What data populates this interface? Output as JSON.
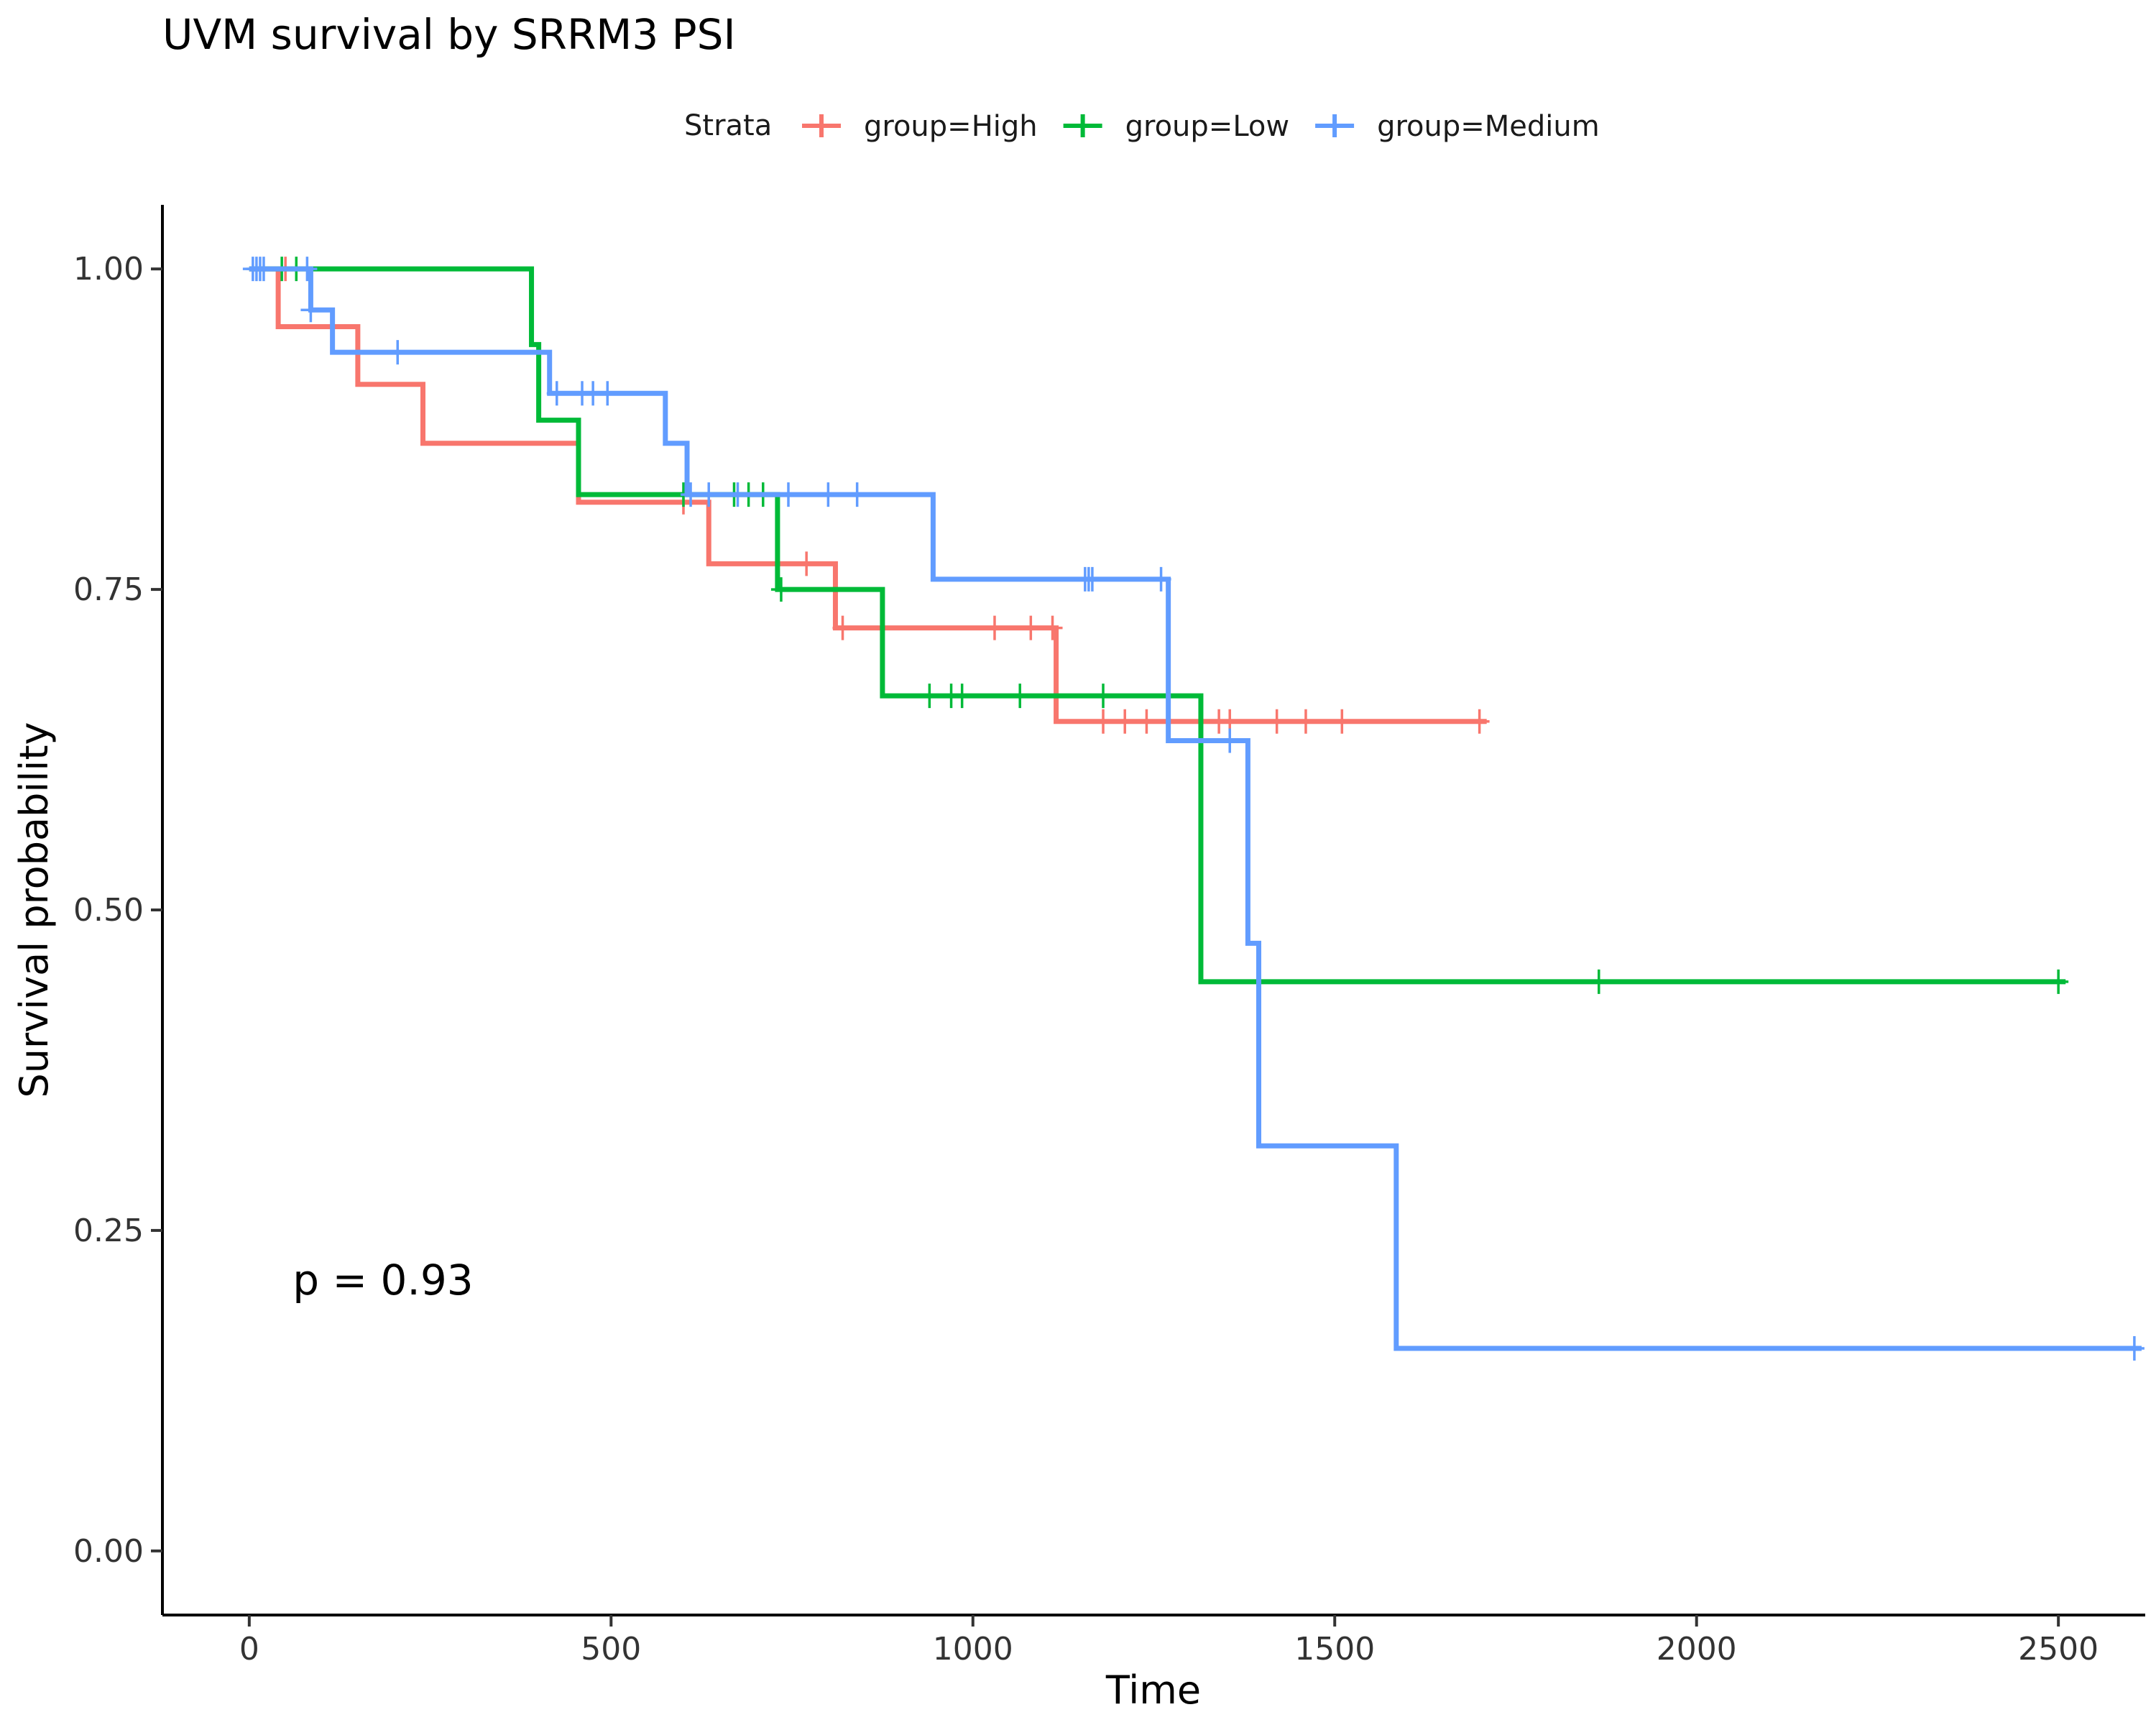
{
  "chart_data": {
    "type": "line",
    "title": "UVM survival by SRRM3 PSI",
    "xlabel": "Time",
    "ylabel": "Survival probability",
    "xlim": [
      -120,
      2620
    ],
    "ylim": [
      -0.05,
      1.05
    ],
    "x_ticks": [
      0,
      500,
      1000,
      1500,
      2000,
      2500
    ],
    "x_tick_labels": [
      "0",
      "500",
      "1000",
      "1500",
      "2000",
      "2500"
    ],
    "y_ticks": [
      0,
      0.25,
      0.5,
      0.75,
      1
    ],
    "y_tick_labels": [
      "0.00",
      "0.25",
      "0.50",
      "0.75",
      "1.00"
    ],
    "grid": false,
    "legend": {
      "title": "Strata",
      "position": "top",
      "entries": [
        "group=High",
        "group=Low",
        "group=Medium"
      ]
    },
    "annotation": "p = 0.93",
    "annotation_pos": {
      "x": 60,
      "y": 0.2
    },
    "series": [
      {
        "name": "group=High",
        "color": "#F8766D",
        "steps": [
          [
            0,
            1
          ],
          [
            40,
            0.955
          ],
          [
            150,
            0.91
          ],
          [
            240,
            0.864
          ],
          [
            455,
            0.818
          ],
          [
            635,
            0.77
          ],
          [
            810,
            0.72
          ],
          [
            1115,
            0.647
          ],
          [
            1710,
            0.647
          ]
        ],
        "censors": [
          [
            50,
            1
          ],
          [
            600,
            0.818
          ],
          [
            770,
            0.77
          ],
          [
            820,
            0.72
          ],
          [
            1030,
            0.72
          ],
          [
            1080,
            0.72
          ],
          [
            1110,
            0.72
          ],
          [
            1180,
            0.647
          ],
          [
            1210,
            0.647
          ],
          [
            1240,
            0.647
          ],
          [
            1340,
            0.647
          ],
          [
            1355,
            0.647
          ],
          [
            1420,
            0.647
          ],
          [
            1460,
            0.647
          ],
          [
            1510,
            0.647
          ],
          [
            1700,
            0.647
          ]
        ]
      },
      {
        "name": "group=Low",
        "color": "#00BA38",
        "steps": [
          [
            0,
            1
          ],
          [
            390,
            0.941
          ],
          [
            400,
            0.882
          ],
          [
            455,
            0.824
          ],
          [
            730,
            0.75
          ],
          [
            875,
            0.667
          ],
          [
            1315,
            0.444
          ],
          [
            2510,
            0.444
          ]
        ],
        "censors": [
          [
            45,
            1
          ],
          [
            65,
            1
          ],
          [
            600,
            0.824
          ],
          [
            670,
            0.824
          ],
          [
            690,
            0.824
          ],
          [
            710,
            0.824
          ],
          [
            735,
            0.75
          ],
          [
            940,
            0.667
          ],
          [
            970,
            0.667
          ],
          [
            985,
            0.667
          ],
          [
            1065,
            0.667
          ],
          [
            1180,
            0.667
          ],
          [
            1865,
            0.444
          ],
          [
            2500,
            0.444
          ]
        ]
      },
      {
        "name": "group=Medium",
        "color": "#619CFF",
        "steps": [
          [
            0,
            1
          ],
          [
            85,
            0.968
          ],
          [
            115,
            0.935
          ],
          [
            415,
            0.903
          ],
          [
            575,
            0.864
          ],
          [
            605,
            0.824
          ],
          [
            945,
            0.758
          ],
          [
            1270,
            0.632
          ],
          [
            1380,
            0.474
          ],
          [
            1395,
            0.316
          ],
          [
            1585,
            0.158
          ],
          [
            2615,
            0.158
          ]
        ],
        "censors": [
          [
            5,
            1
          ],
          [
            10,
            1
          ],
          [
            15,
            1
          ],
          [
            20,
            1
          ],
          [
            80,
            1
          ],
          [
            85,
            0.968
          ],
          [
            205,
            0.935
          ],
          [
            425,
            0.903
          ],
          [
            460,
            0.903
          ],
          [
            475,
            0.903
          ],
          [
            495,
            0.903
          ],
          [
            610,
            0.824
          ],
          [
            635,
            0.824
          ],
          [
            675,
            0.824
          ],
          [
            745,
            0.824
          ],
          [
            800,
            0.824
          ],
          [
            840,
            0.824
          ],
          [
            1155,
            0.758
          ],
          [
            1160,
            0.758
          ],
          [
            1165,
            0.758
          ],
          [
            1260,
            0.758
          ],
          [
            1355,
            0.632
          ],
          [
            2605,
            0.158
          ]
        ]
      }
    ]
  }
}
